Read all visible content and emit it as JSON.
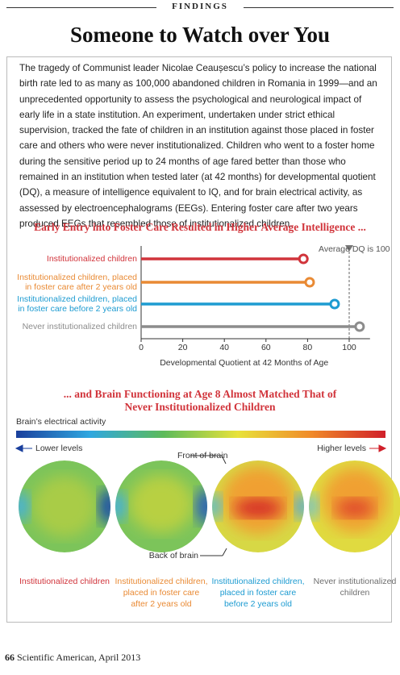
{
  "header": {
    "section": "FINDINGS",
    "title": "Someone to Watch over You"
  },
  "body": "The tragedy of Communist leader Nicolae Ceaușescu’s policy to increase the national birth rate led to as many as 100,000 abandoned children in Romania in 1999—and an unprecedented opportunity to assess the psychological and neurological impact of early life in a state institution. An experiment, undertaken under strict ethical supervision, tracked the fate of children in an institution against those placed in foster care and others who were never institutionalized. Children who went to a foster home during the sensitive period up to 24 months of age fared better than those who remained in an institution when tested later (at 42 months) for developmental quotient (DQ), a measure of intelligence equivalent to IQ, and for brain electrical activity, as assessed by electroencephalograms (EEGs). Entering foster care after two years produced EEGs that resembled those of institutionalized children.",
  "chart_data": {
    "type": "dot",
    "title": "Early Entry into Foster Care Resulted in Higher Average Intelligence ...",
    "categories": [
      "Institutionalized children",
      "Institutionalized children, placed in foster care after 2 years old",
      "Institutionalized children, placed in foster care before 2 years old",
      "Never institutionalized children"
    ],
    "values": [
      78,
      81,
      93,
      105
    ],
    "colors": [
      "#d1343b",
      "#e98a34",
      "#1d9bd1",
      "#8c8c8c"
    ],
    "xlabel": "Developmental Quotient at 42 Months of Age",
    "xlim": [
      0,
      110
    ],
    "xticks": [
      0,
      20,
      40,
      60,
      80,
      100
    ],
    "reference": {
      "value": 100,
      "label": "Average DQ is 100"
    }
  },
  "brain": {
    "title": "... and Brain Functioning at Age 8 Almost Matched That of Never Institutionalized Children",
    "scale_label": "Brain’s electrical activity",
    "low": "Lower levels",
    "high": "Higher levels",
    "front": "Front of brain",
    "back": "Back of brain",
    "groups": [
      {
        "label": "Institutionalized children",
        "color": "#d1343b"
      },
      {
        "label": "Institutionalized children, placed in foster care after 2 years old",
        "color": "#e98a34"
      },
      {
        "label": "Institutionalized children, placed in foster care before 2 years old",
        "color": "#1d9bd1"
      },
      {
        "label": "Never institutionalized children",
        "color": "#6e6e6e"
      }
    ]
  },
  "footer": {
    "page": "66",
    "source": "Scientific American, April 2013"
  }
}
